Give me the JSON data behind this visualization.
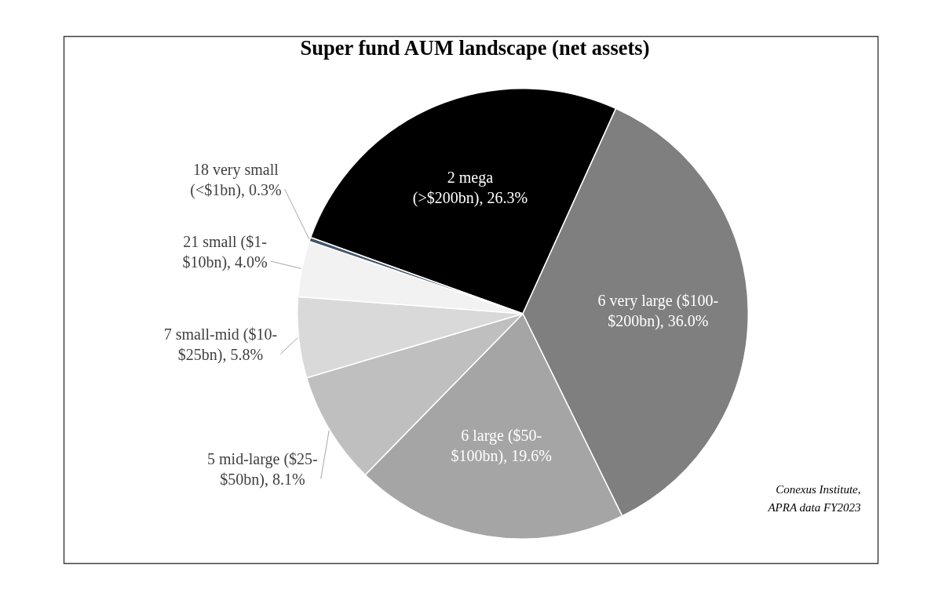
{
  "chart_data": {
    "type": "pie",
    "title": "Super fund AUM landscape (net assets)",
    "categories": [
      "2 mega (>$200bn)",
      "6 very large ($100-$200bn)",
      "6 large ($50-$100bn)",
      "5 mid-large ($25-$50bn)",
      "7 small-mid ($10-$25bn)",
      "21 small ($1-$10bn)",
      "18 very small (<$1bn)"
    ],
    "values": [
      26.3,
      36.0,
      19.6,
      8.1,
      5.8,
      4.0,
      0.3
    ],
    "colors": [
      "#000000",
      "#7f7f7f",
      "#a5a5a5",
      "#bfbfbf",
      "#d9d9d9",
      "#f2f2f2",
      "#44546a"
    ],
    "value_labels": [
      "26.3%",
      "36.0%",
      "19.6%",
      "8.1%",
      "5.8%",
      "4.0%",
      "0.3%"
    ],
    "annotations": [
      "Conexus Institute, APRA data FY2023"
    ]
  }
}
